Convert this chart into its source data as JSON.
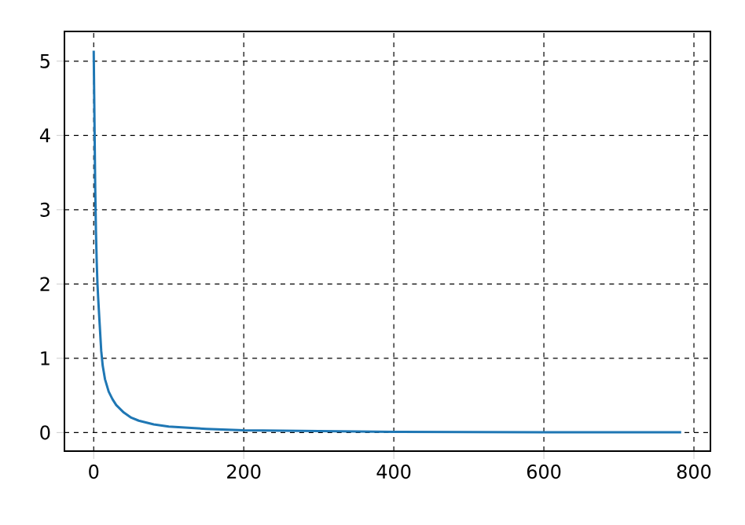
{
  "chart_data": {
    "type": "line",
    "x": [
      0,
      1,
      2,
      3,
      4,
      5,
      6,
      8,
      10,
      12,
      15,
      20,
      25,
      30,
      40,
      50,
      60,
      80,
      100,
      150,
      200,
      300,
      400,
      600,
      783
    ],
    "series": [
      {
        "color": "#1f77b4",
        "values": [
          5.14,
          4.2,
          3.3,
          2.7,
          2.3,
          2.0,
          1.8,
          1.45,
          1.1,
          0.9,
          0.72,
          0.55,
          0.45,
          0.37,
          0.27,
          0.2,
          0.16,
          0.11,
          0.08,
          0.05,
          0.03,
          0.02,
          0.01,
          0.005,
          0.003
        ]
      }
    ],
    "xlim": [
      -39,
      822
    ],
    "ylim": [
      -0.25,
      5.4
    ],
    "xticks": [
      0,
      200,
      400,
      600,
      800
    ],
    "yticks": [
      0,
      1,
      2,
      3,
      4,
      5
    ],
    "grid": true,
    "line_style": "solid"
  }
}
